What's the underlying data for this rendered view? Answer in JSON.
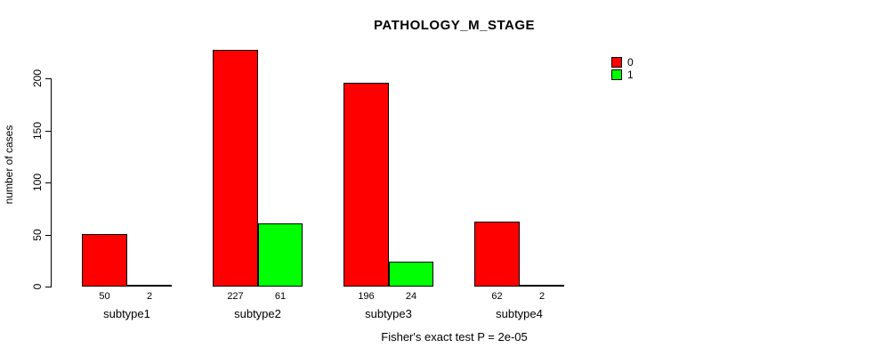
{
  "chart_data": {
    "type": "bar",
    "title": "PATHOLOGY_M_STAGE",
    "ylabel": "number of cases",
    "xlabel": "",
    "categories": [
      "subtype1",
      "subtype2",
      "subtype3",
      "subtype4"
    ],
    "series": [
      {
        "name": "0",
        "color": "#FF0000",
        "values": [
          50,
          227,
          196,
          62
        ]
      },
      {
        "name": "1",
        "color": "#00FF00",
        "values": [
          2,
          61,
          24,
          2
        ]
      }
    ],
    "value_labels": [
      [
        "50",
        "2"
      ],
      [
        "227",
        "61"
      ],
      [
        "196",
        "24"
      ],
      [
        "62",
        "2"
      ]
    ],
    "yticks": [
      "0",
      "50",
      "100",
      "150",
      "200"
    ],
    "ylim": [
      0,
      235
    ],
    "grid": false,
    "legend_position": "right",
    "annotation": "Fisher's exact test P = 2e-05"
  },
  "colors": {
    "series0": "#FF0000",
    "series1": "#00FF00",
    "axis": "#000000",
    "background": "#FFFFFF"
  }
}
